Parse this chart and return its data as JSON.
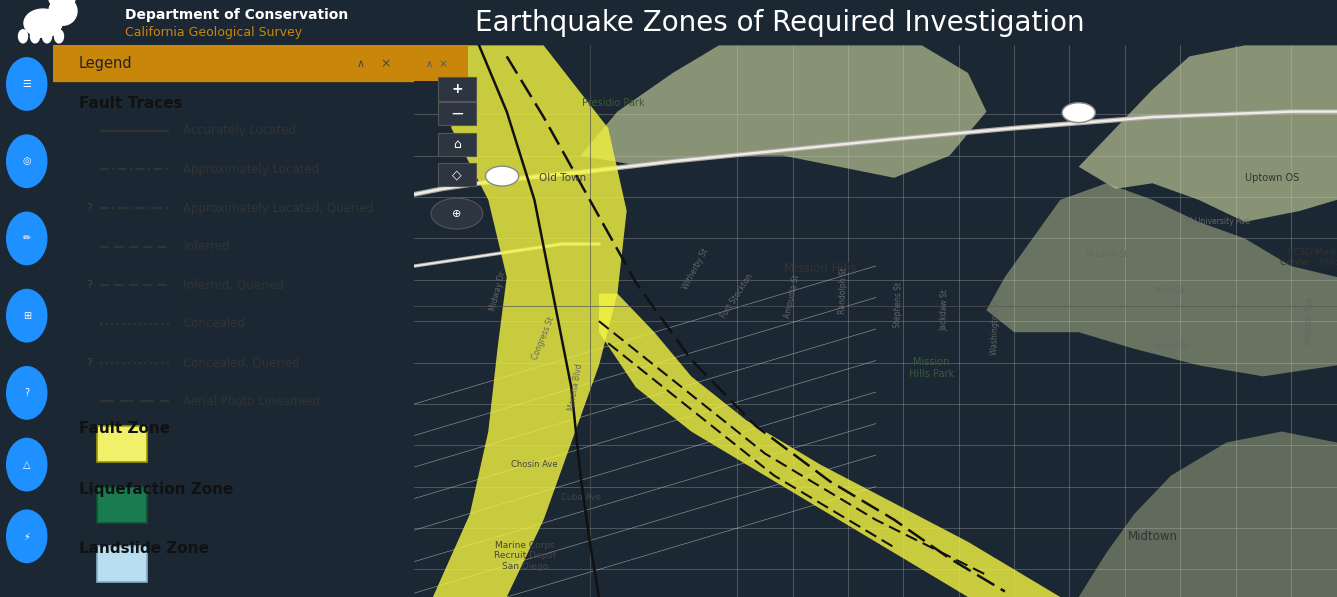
{
  "title": "Earthquake Zones of Required Investigation",
  "header_bg": "#1b2733",
  "header_text_color": "#ffffff",
  "title_fontsize": 20,
  "dept_name": "Department of Conservation",
  "dept_subtitle": "California Geological Survey",
  "dept_subtitle_color": "#c8860a",
  "legend_header_bg": "#c8860a",
  "legend_header_text": "Legend",
  "fault_traces_label": "Fault Traces",
  "fault_items": [
    {
      "label": "Accurately Located",
      "style": "solid",
      "queried": false
    },
    {
      "label": "Approximately Located",
      "style": "dashdot",
      "queried": false
    },
    {
      "label": "Approximately Located, Queried",
      "style": "dashdot",
      "queried": true
    },
    {
      "label": "Inferred",
      "style": "dashed",
      "queried": false
    },
    {
      "label": "Inferred, Queried",
      "style": "dashed",
      "queried": true
    },
    {
      "label": "Concealed",
      "style": "dotted",
      "queried": false
    },
    {
      "label": "Concealed, Queried",
      "style": "dotted",
      "queried": true
    },
    {
      "label": "Aerial Photo Lineament",
      "style": "loosedash",
      "queried": false
    }
  ],
  "zone_items": [
    {
      "label": "Fault Zone",
      "color": "#f0f06a",
      "edge": "#999900"
    },
    {
      "label": "Liquefaction Zone",
      "color": "#1a7a50",
      "edge": "#0d5533"
    },
    {
      "label": "Landslide Zone",
      "color": "#b8dff0",
      "edge": "#88aacc"
    }
  ],
  "sidebar_icon_color": "#1e90ff",
  "map_base_color": "#e8e4dc",
  "hill_color": "#c5c9a0",
  "fault_zone_yellow": "#f5f540",
  "fault_line_color": "#111111",
  "road_color": "#cccccc",
  "crosshair_color": "#555555"
}
